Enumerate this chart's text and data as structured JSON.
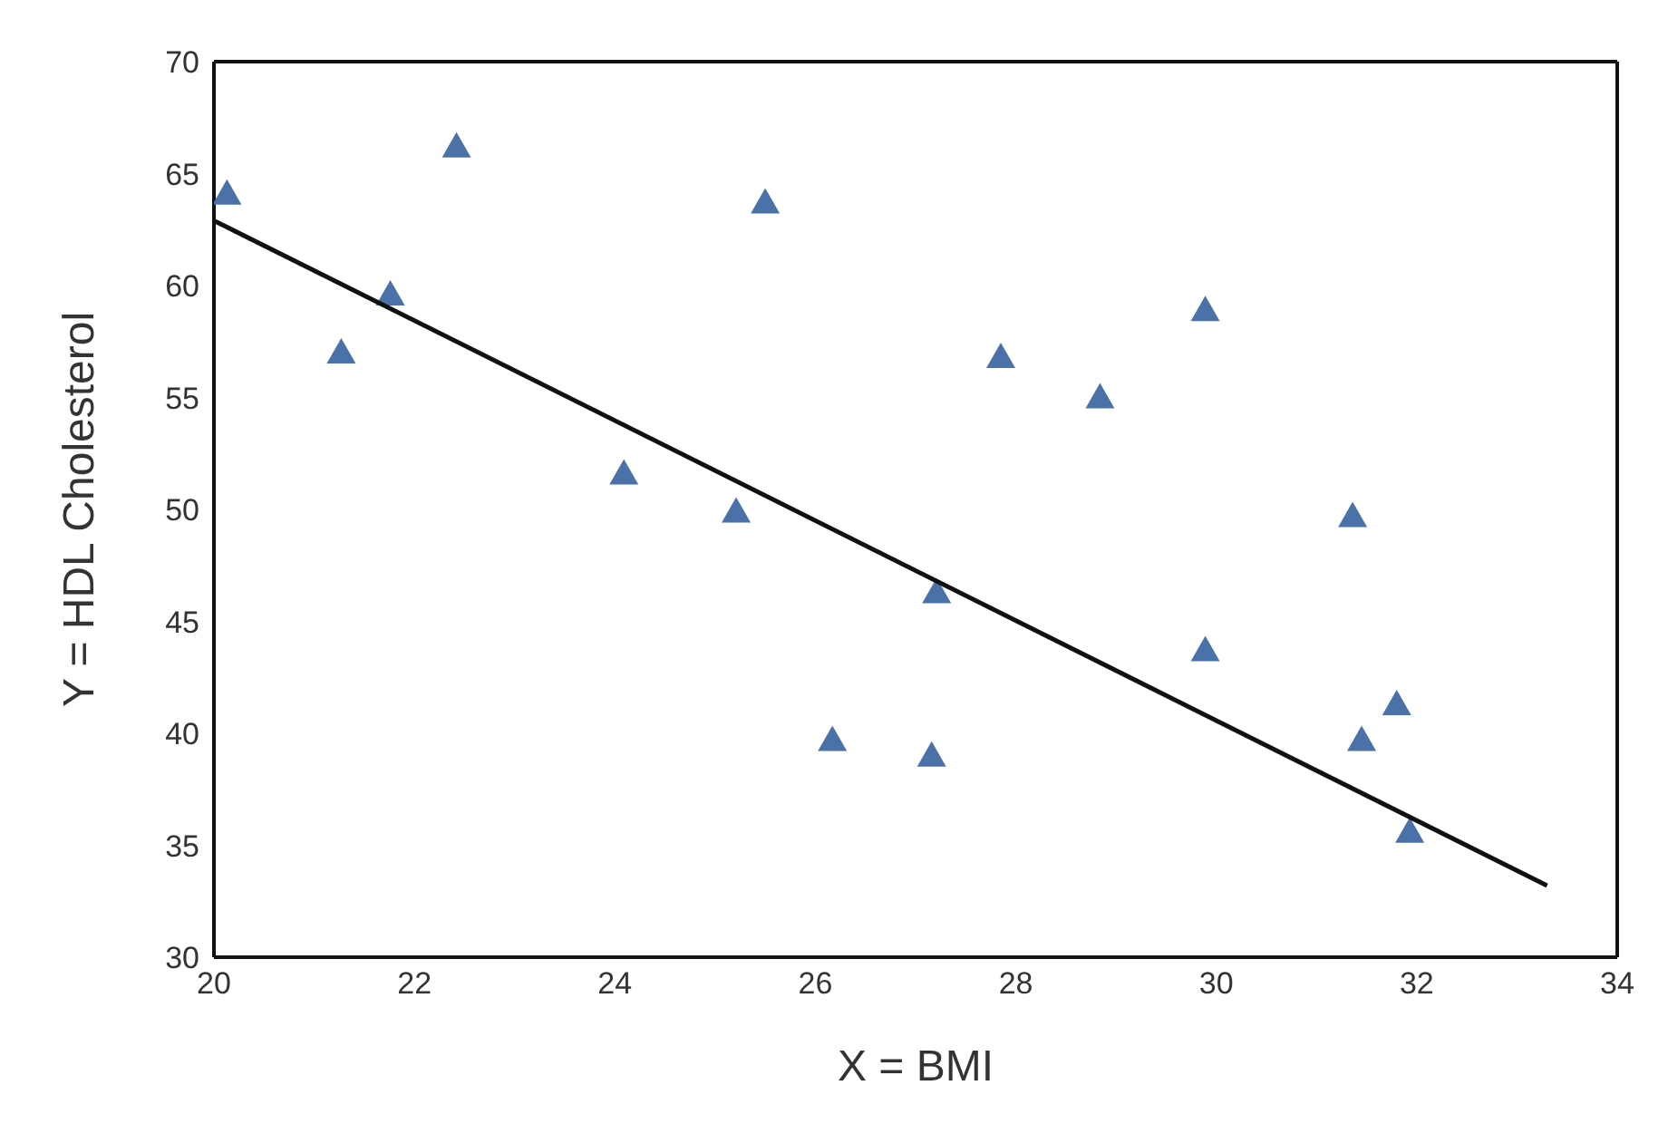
{
  "chart_data": {
    "type": "scatter",
    "xlabel": "X = BMI",
    "ylabel": "Y = HDL Cholesterol",
    "xlim": [
      20,
      34
    ],
    "ylim": [
      30,
      70
    ],
    "xticks": [
      20,
      22,
      24,
      26,
      28,
      30,
      32,
      34
    ],
    "yticks": [
      30,
      35,
      40,
      45,
      50,
      55,
      60,
      65,
      70
    ],
    "series": [
      {
        "color": "#4a72a8",
        "marker": "triangle",
        "x": [
          20.13,
          21.27,
          21.76,
          22.42,
          24.09,
          25.21,
          25.5,
          26.17,
          27.16,
          27.21,
          27.85,
          28.84,
          29.89,
          29.89,
          31.36,
          31.45,
          31.8,
          31.93
        ],
        "values": [
          64.1,
          57.0,
          59.6,
          66.2,
          51.6,
          49.9,
          63.7,
          39.7,
          39.0,
          46.3,
          56.8,
          55.0,
          58.9,
          43.7,
          49.7,
          39.7,
          41.3,
          35.6
        ]
      },
      {
        "type": "line",
        "color": "#111111",
        "marker": "none",
        "x": [
          20,
          33.3
        ],
        "values": [
          62.9,
          33.2
        ]
      }
    ]
  }
}
